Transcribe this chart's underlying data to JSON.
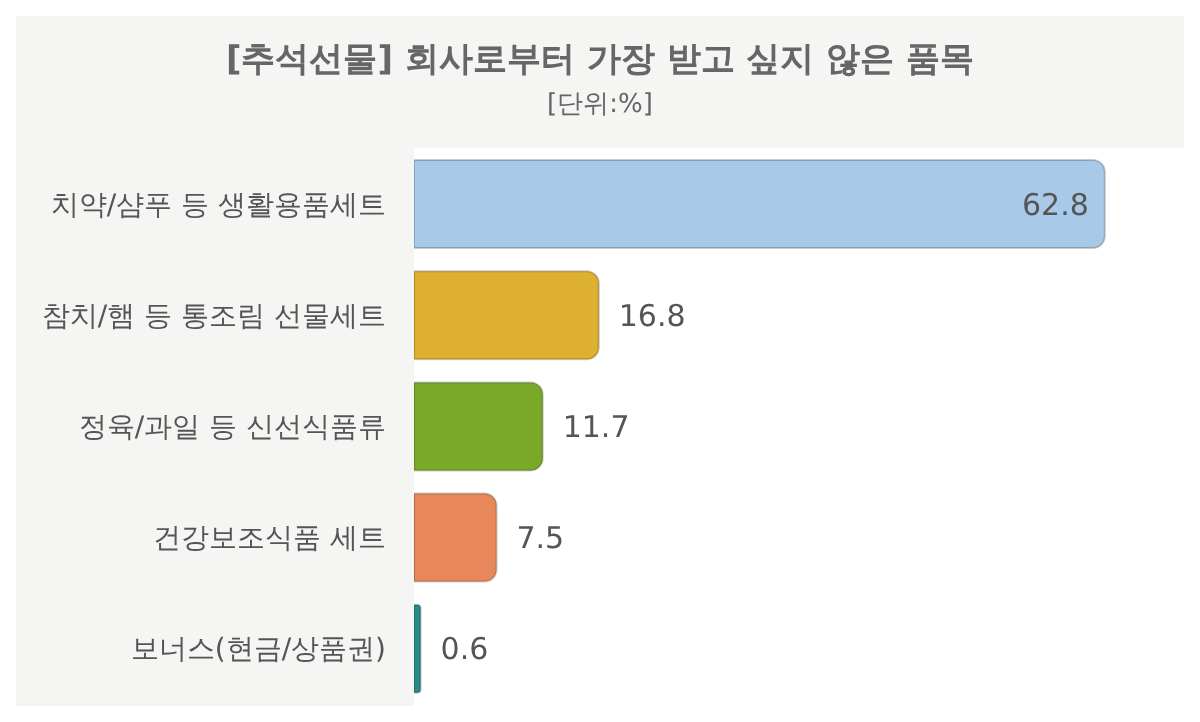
{
  "chart_data": {
    "type": "bar",
    "orientation": "horizontal",
    "title": "[추석선물] 회사로부터 가장 받고 싶지 않은 품목",
    "subtitle": "[단위:%]",
    "categories": [
      "치약/샴푸 등 생활용품세트",
      "참치/햄 등 통조림 선물세트",
      "정육/과일 등 신선식품류",
      "건강보조식품 세트",
      "보너스(현금/상품권)"
    ],
    "values": [
      62.8,
      16.8,
      11.7,
      7.5,
      0.6
    ],
    "colors": [
      "#a9c9e9",
      "#ddb030",
      "#7aa828",
      "#e8875a",
      "#2a8a8a"
    ],
    "xlim": [
      0,
      70
    ],
    "tick_labels": "y",
    "data_labels": true
  }
}
